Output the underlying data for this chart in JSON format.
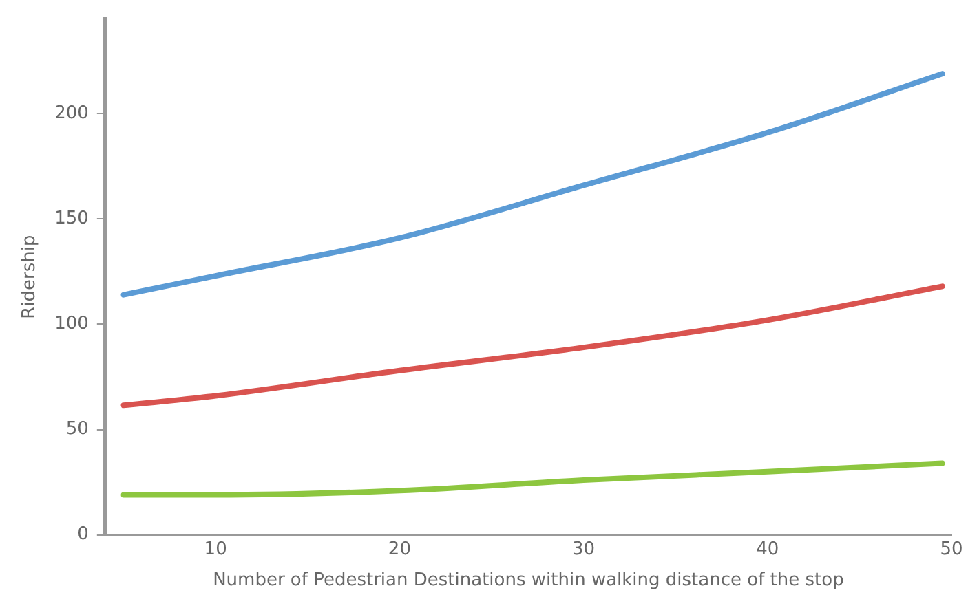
{
  "chart_data": {
    "type": "line",
    "xlabel": "Number of Pedestrian Destinations within walking distance of the stop",
    "ylabel": "Ridership",
    "x": [
      5,
      10,
      20,
      30,
      40,
      49.5
    ],
    "series": [
      {
        "color": "#5b9bd5",
        "values": [
          114,
          123,
          141,
          166,
          191,
          219
        ]
      },
      {
        "color": "#d9534f",
        "values": [
          61.5,
          66,
          78,
          89,
          102,
          118
        ]
      },
      {
        "color": "#8dc63f",
        "values": [
          19,
          19,
          21,
          26,
          30,
          34
        ]
      }
    ],
    "xlim": [
      4,
      50
    ],
    "xticks": [
      10,
      20,
      30,
      40,
      50
    ],
    "ylim": [
      0,
      245
    ],
    "yticks": [
      0,
      50,
      100,
      150,
      200
    ],
    "grid": false,
    "legend": false,
    "marker": "none",
    "line_style": "solid"
  }
}
